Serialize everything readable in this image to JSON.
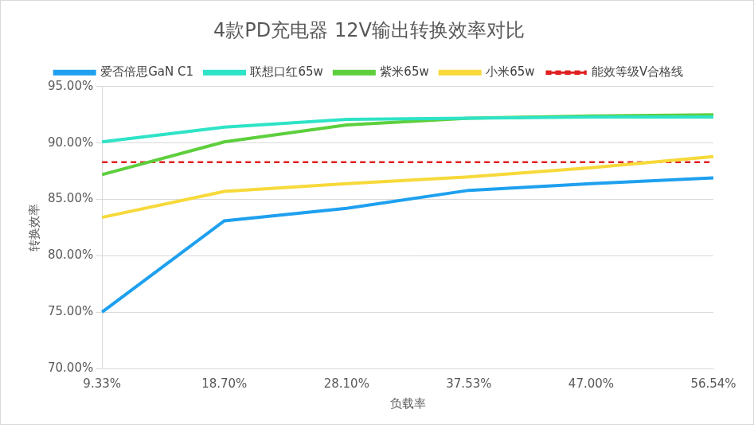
{
  "chart_data": {
    "type": "line",
    "title": "4款PD充电器 12V输出转换效率对比",
    "x_label": "负载率",
    "y_label": "转换效率",
    "categories": [
      "9.33%",
      "18.70%",
      "28.10%",
      "37.53%",
      "47.00%",
      "56.54%"
    ],
    "series": [
      {
        "name": "爱否倍思GaN C1",
        "color": "#1ea0ef",
        "line_style": "solid",
        "values": [
          75.0,
          83.1,
          84.2,
          85.8,
          86.4,
          86.9
        ]
      },
      {
        "name": "联想口红65w",
        "color": "#2ee3c6",
        "line_style": "solid",
        "values": [
          90.1,
          91.4,
          92.1,
          92.2,
          92.3,
          92.3
        ]
      },
      {
        "name": "紫米65w",
        "color": "#5dcf3d",
        "line_style": "solid",
        "values": [
          87.2,
          90.1,
          91.6,
          92.2,
          92.4,
          92.5
        ]
      },
      {
        "name": "小米65w",
        "color": "#f7d93a",
        "line_style": "solid",
        "values": [
          83.4,
          85.7,
          86.4,
          87.0,
          87.8,
          88.8
        ]
      },
      {
        "name": "能效等级V合格线",
        "color": "#e02020",
        "line_style": "dashed",
        "values": [
          88.3,
          88.3,
          88.3,
          88.3,
          88.3,
          88.3
        ]
      }
    ],
    "ylim": [
      70,
      95
    ],
    "yticks": [
      {
        "value": 70,
        "label": "70.00%"
      },
      {
        "value": 75,
        "label": "75.00%"
      },
      {
        "value": 80,
        "label": "80.00%"
      },
      {
        "value": 85,
        "label": "85.00%"
      },
      {
        "value": 90,
        "label": "90.00%"
      },
      {
        "value": 95,
        "label": "95.00%"
      }
    ],
    "grid": true,
    "legend": "top"
  }
}
